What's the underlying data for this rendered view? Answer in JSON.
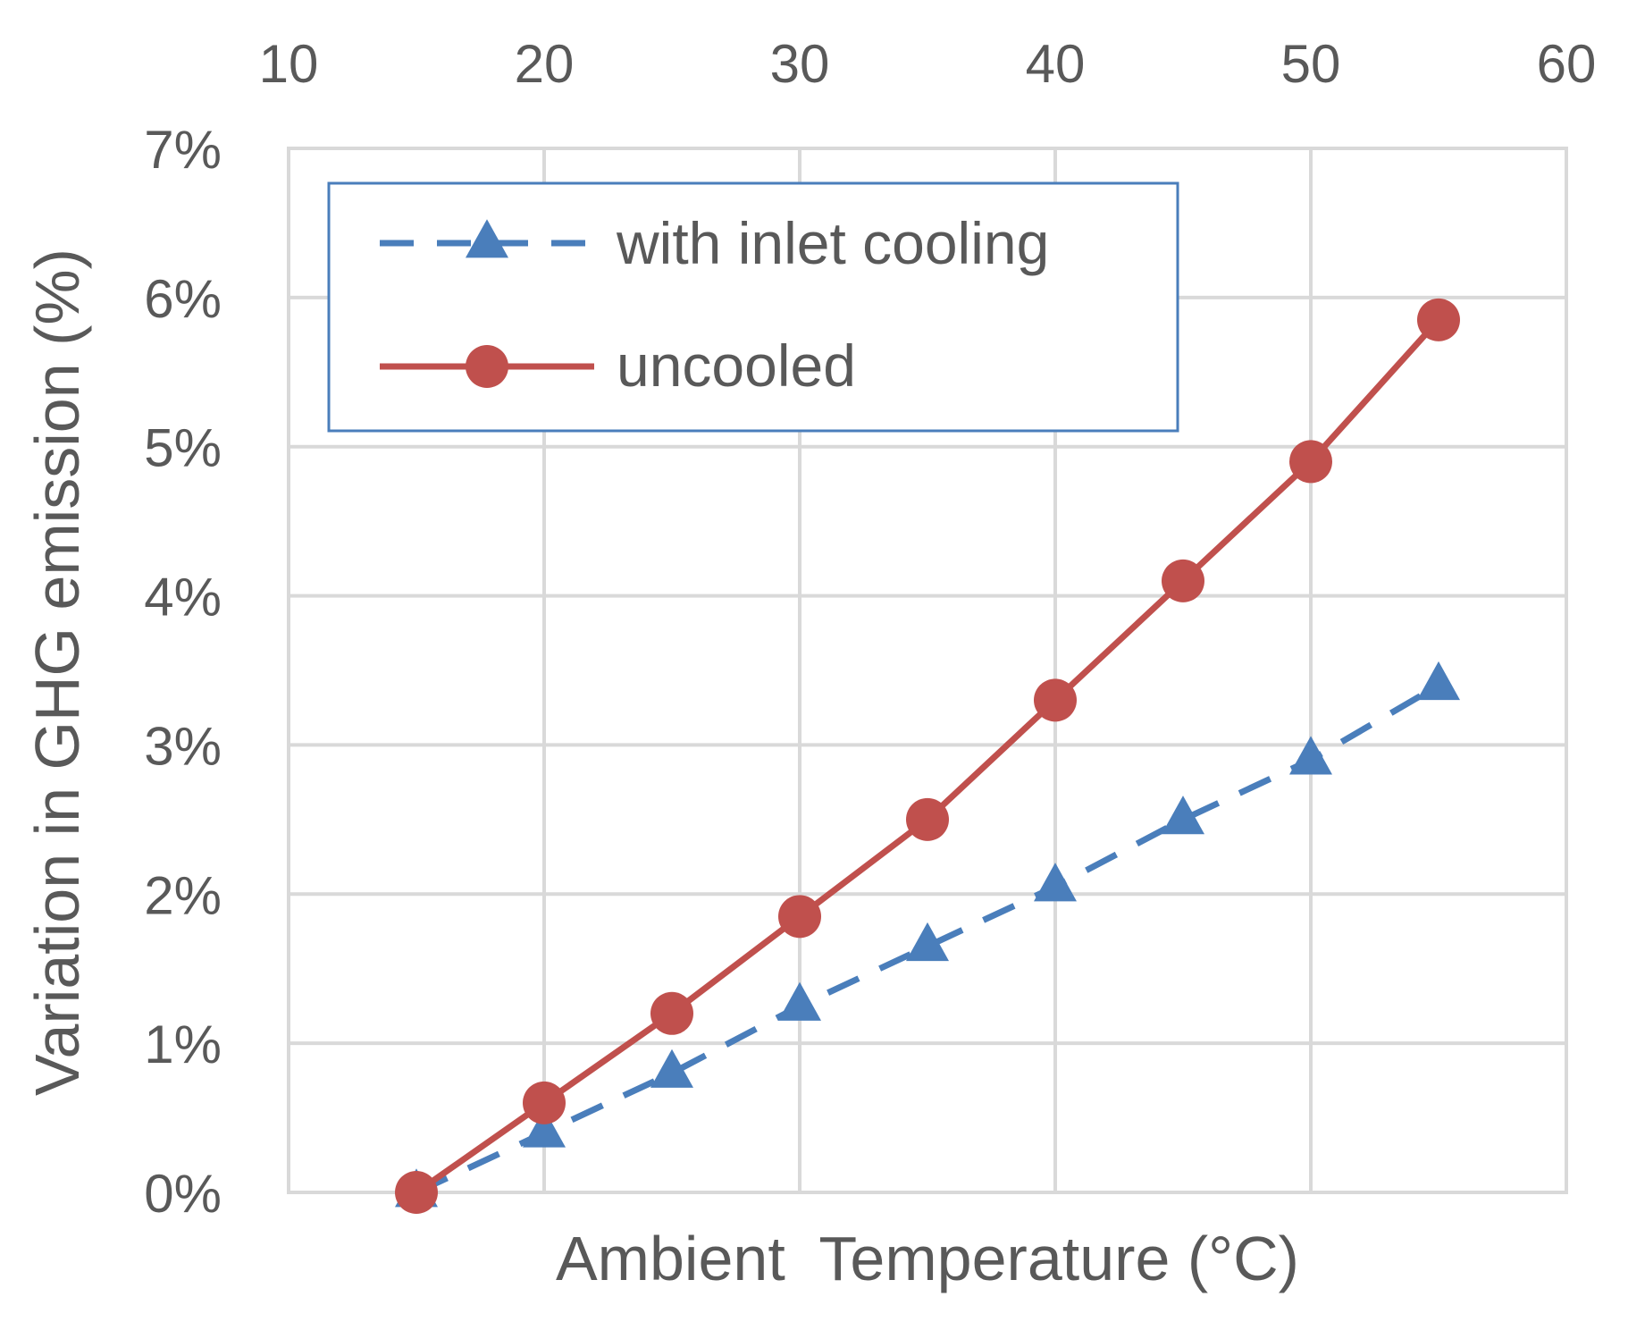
{
  "chart_data": {
    "type": "line",
    "title": "",
    "xlabel": "Ambient  Temperature (°C)",
    "ylabel": "Variation in GHG emission (%)",
    "xlim": [
      10,
      60
    ],
    "ylim": [
      0,
      7
    ],
    "x_ticks": [
      10,
      20,
      30,
      40,
      50,
      60
    ],
    "x_tick_labels": [
      "10",
      "20",
      "30",
      "40",
      "50",
      "60"
    ],
    "y_ticks": [
      0,
      1,
      2,
      3,
      4,
      5,
      6,
      7
    ],
    "y_tick_labels": [
      "0%",
      "1%",
      "2%",
      "3%",
      "4%",
      "5%",
      "6%",
      "7%"
    ],
    "x_axis_position": "top",
    "grid": true,
    "legend_position": "top-left",
    "x": [
      15,
      20,
      25,
      30,
      35,
      40,
      45,
      50,
      55
    ],
    "series": [
      {
        "name": "with inlet cooling",
        "values": [
          0,
          0.4,
          0.8,
          1.25,
          1.65,
          2.05,
          2.5,
          2.9,
          3.4
        ],
        "color": "#4a7ebb",
        "marker": "triangle",
        "line_style": "dashed"
      },
      {
        "name": "uncooled",
        "values": [
          0,
          0.6,
          1.2,
          1.85,
          2.5,
          3.3,
          4.1,
          4.9,
          5.85
        ],
        "color": "#c0504d",
        "marker": "circle",
        "line_style": "solid"
      }
    ],
    "legend_border_color": "#4a7ebb"
  }
}
